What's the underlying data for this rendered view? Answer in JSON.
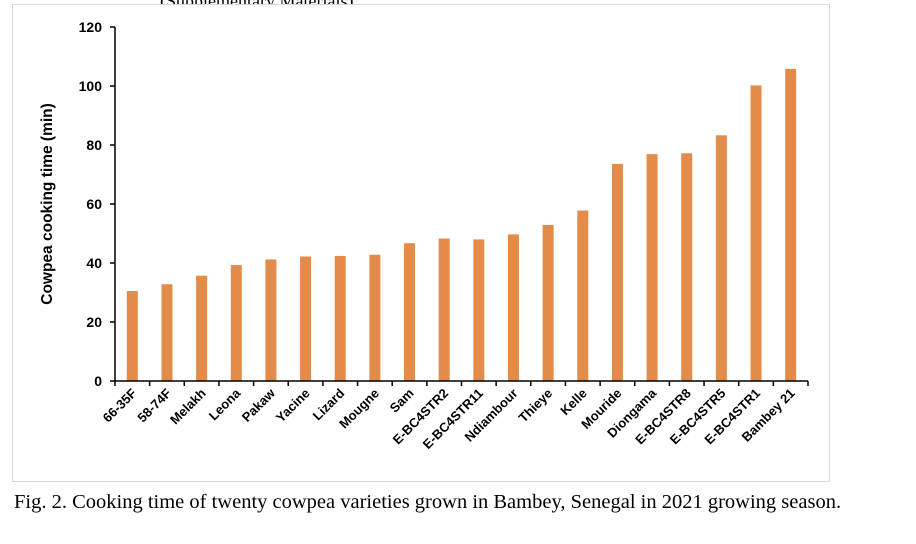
{
  "header_fragment": "(Supplementary Materials)",
  "caption": "Fig. 2. Cooking time of twenty cowpea varieties grown in Bambey, Senegal in 2021 growing season.",
  "chart_data": {
    "type": "bar",
    "title": "",
    "xlabel": "",
    "ylabel": "Cowpea cooking time (min)",
    "ylim": [
      0,
      120
    ],
    "yticks": [
      0,
      20,
      40,
      60,
      80,
      100,
      120
    ],
    "grid": false,
    "bar_color": "#E38B48",
    "categories": [
      "66-35F",
      "58-74F",
      "Melakh",
      "Leona",
      "Pakaw",
      "Yacine",
      "Lizard",
      "Mougne",
      "Sam",
      "E-BC4STR2",
      "E-BC4STR11",
      "Ndiambour",
      "Thieye",
      "Kelle",
      "Mouride",
      "Diongama",
      "E-BC4STR8",
      "E-BC4STR5",
      "E-BC4STR1",
      "Bambey 21"
    ],
    "values": [
      30.5,
      32.8,
      35.7,
      39.3,
      41.2,
      42.2,
      42.4,
      42.8,
      46.7,
      48.3,
      48.0,
      49.7,
      52.9,
      57.8,
      73.6,
      76.9,
      77.2,
      83.3,
      100.2,
      105.8
    ]
  }
}
